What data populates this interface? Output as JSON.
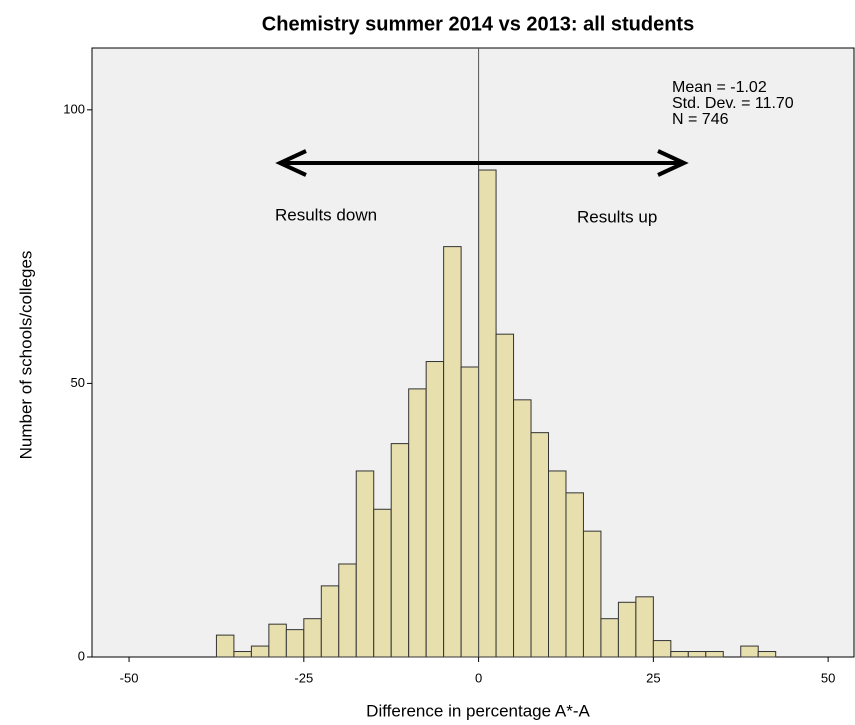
{
  "chart_data": {
    "type": "histogram",
    "title": "Chemistry summer 2014 vs 2013: all students",
    "xlabel": "Difference in percentage A*-A",
    "ylabel": "Number of schools/colleges",
    "bins": [
      -37.5,
      -35,
      -32.5,
      -30,
      -27.5,
      -25,
      -22.5,
      -20,
      -17.5,
      -15,
      -12.5,
      -10,
      -7.5,
      -5,
      -2.5,
      0,
      2.5,
      5,
      7.5,
      10,
      12.5,
      15,
      17.5,
      20,
      22.5,
      25,
      27.5,
      30,
      32.5,
      35,
      37.5,
      40,
      42.5
    ],
    "counts": [
      4,
      1,
      2,
      6,
      5,
      7,
      13,
      17,
      34,
      27,
      39,
      49,
      54,
      75,
      53,
      89,
      59,
      47,
      41,
      34,
      30,
      23,
      7,
      10,
      11,
      3,
      1,
      1,
      1,
      0,
      2,
      1
    ],
    "color": "#e8dfae",
    "edgecolor": "#333333",
    "background": "#f0f0f0",
    "xlim": [
      -55.3,
      53.7
    ],
    "ylim": [
      0,
      111.3
    ],
    "xticks": [
      -50,
      -25,
      0,
      25,
      50
    ],
    "yticks": [
      0,
      50,
      100
    ],
    "reference_x": 0,
    "stats": [
      "Mean = -1.02",
      "Std. Dev. = 11.70",
      "N = 746"
    ],
    "annotations": [
      "Results down",
      "Results up"
    ]
  }
}
